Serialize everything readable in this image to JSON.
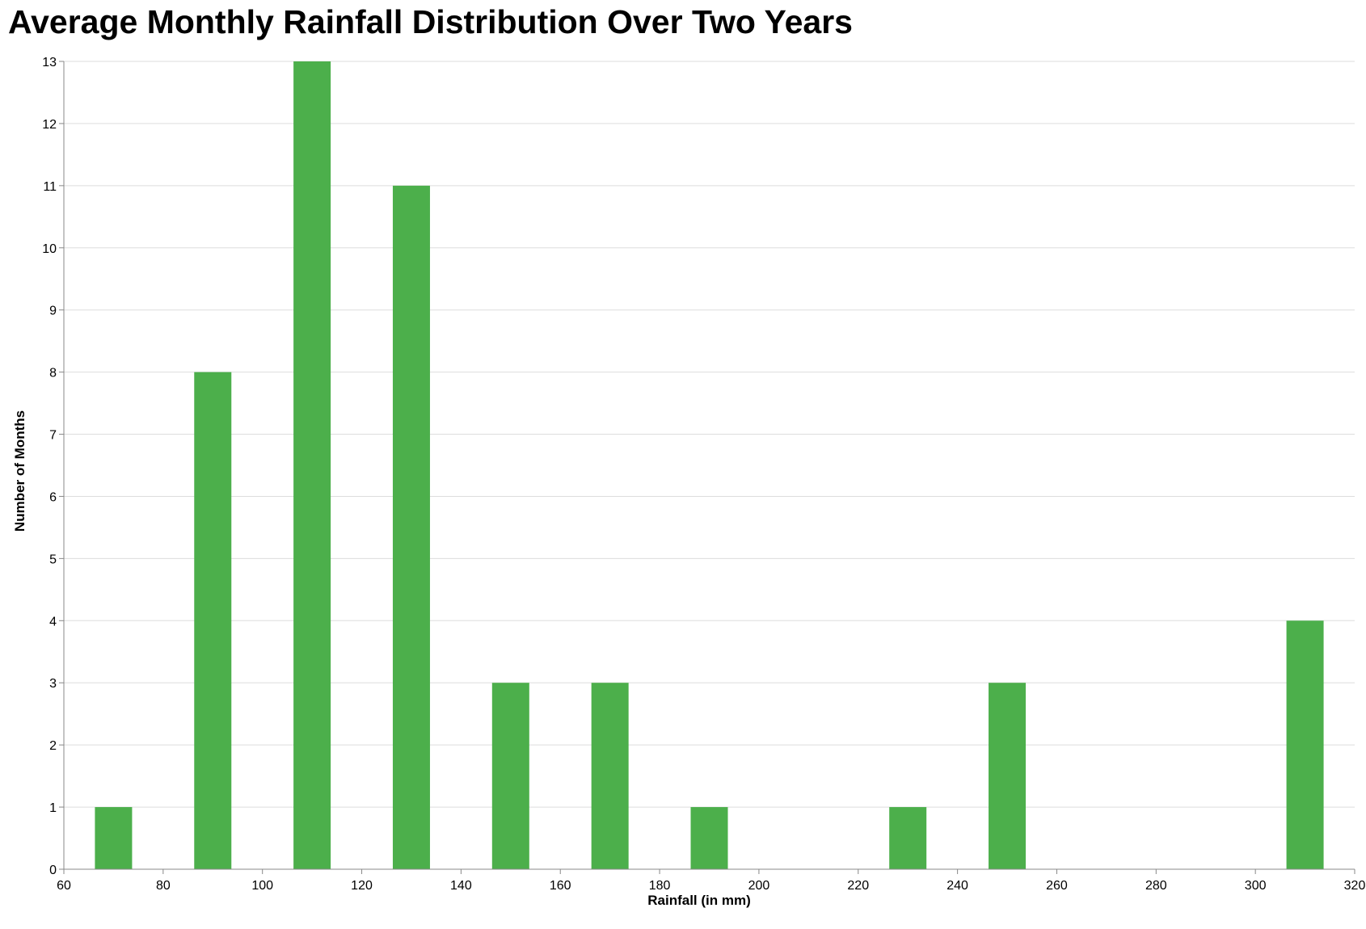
{
  "chart_data": {
    "type": "bar",
    "title": "Average Monthly Rainfall Distribution Over Two Years",
    "xlabel": "Rainfall (in mm)",
    "ylabel": "Number of Months",
    "xlim": [
      60,
      320
    ],
    "ylim": [
      0,
      13
    ],
    "x_ticks": [
      60,
      80,
      100,
      120,
      140,
      160,
      180,
      200,
      220,
      240,
      260,
      280,
      300,
      320
    ],
    "y_ticks": [
      0,
      1,
      2,
      3,
      4,
      5,
      6,
      7,
      8,
      9,
      10,
      11,
      12,
      13
    ],
    "bin_width": 20,
    "bins": [
      {
        "x": 70,
        "count": 1
      },
      {
        "x": 90,
        "count": 8
      },
      {
        "x": 110,
        "count": 13
      },
      {
        "x": 130,
        "count": 11
      },
      {
        "x": 150,
        "count": 3
      },
      {
        "x": 170,
        "count": 3
      },
      {
        "x": 190,
        "count": 1
      },
      {
        "x": 230,
        "count": 1
      },
      {
        "x": 250,
        "count": 3
      },
      {
        "x": 310,
        "count": 4
      }
    ],
    "grid": true,
    "bar_color": "#4caf4b",
    "grid_color": "#dddddd",
    "axis_color": "#888888"
  }
}
